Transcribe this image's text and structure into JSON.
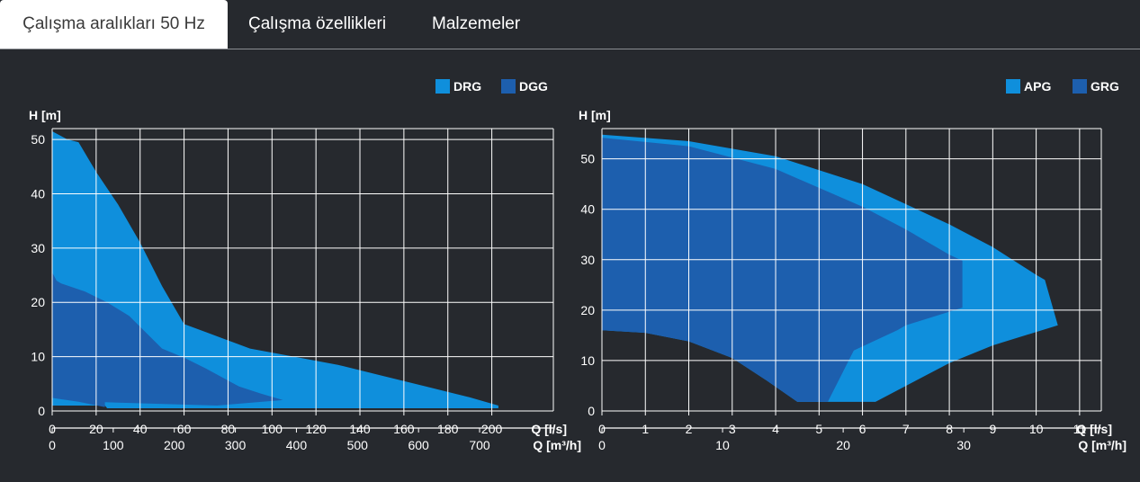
{
  "tabs": [
    {
      "label": "Çalışma aralıkları 50 Hz",
      "active": true
    },
    {
      "label": "Çalışma özellikleri",
      "active": false
    },
    {
      "label": "Malzemeler",
      "active": false
    }
  ],
  "colors": {
    "background": "#26292e",
    "grid": "#ffffff",
    "series_light": "#0f8fdc",
    "series_dark": "#1d5fae"
  },
  "chart_data": [
    {
      "type": "area",
      "ylabel": "H [m]",
      "xlabel": "Q [l/s]",
      "xlabel2": "Q [m³/h]",
      "xlim": [
        0,
        228
      ],
      "ylim": [
        0,
        52
      ],
      "xticks": [
        0,
        20,
        40,
        60,
        80,
        100,
        120,
        140,
        160,
        180,
        200
      ],
      "yticks": [
        0,
        10,
        20,
        30,
        40,
        50
      ],
      "xticks2": [
        0,
        100,
        200,
        300,
        400,
        500,
        600,
        700
      ],
      "legend_position": "top-right",
      "grid": true,
      "series": [
        {
          "name": "DRG",
          "color": "#0f8fdc",
          "points": [
            [
              0,
              51.5
            ],
            [
              7,
              50
            ],
            [
              12,
              49.5
            ],
            [
              20,
              44
            ],
            [
              30,
              38
            ],
            [
              40,
              31
            ],
            [
              50,
              23
            ],
            [
              60,
              16
            ],
            [
              70,
              14.5
            ],
            [
              90,
              11.5
            ],
            [
              110,
              10
            ],
            [
              130,
              8.5
            ],
            [
              150,
              6.5
            ],
            [
              170,
              4.5
            ],
            [
              190,
              2.5
            ],
            [
              203,
              1
            ],
            [
              203,
              0.5
            ],
            [
              25,
              0.5
            ],
            [
              24,
              1
            ],
            [
              0,
              1
            ]
          ]
        },
        {
          "name": "DGG",
          "color": "#1d5fae",
          "points": [
            [
              0,
              25.5
            ],
            [
              2,
              24
            ],
            [
              4,
              23.5
            ],
            [
              15,
              22
            ],
            [
              25,
              20
            ],
            [
              35,
              17.5
            ],
            [
              50,
              11.5
            ],
            [
              60,
              9.8
            ],
            [
              70,
              7.8
            ],
            [
              85,
              4.5
            ],
            [
              95,
              3.2
            ],
            [
              105,
              2
            ],
            [
              75,
              1
            ],
            [
              24,
              1.6
            ],
            [
              24,
              0.7
            ],
            [
              12,
              1.7
            ],
            [
              0,
              2.4
            ]
          ]
        }
      ]
    },
    {
      "type": "area",
      "ylabel": "H [m]",
      "xlabel": "Q [l/s]",
      "xlabel2": "Q [m³/h]",
      "xlim": [
        0,
        11.5
      ],
      "ylim": [
        0,
        56
      ],
      "xticks": [
        0,
        1,
        2,
        3,
        4,
        5,
        6,
        7,
        8,
        9,
        10,
        11
      ],
      "yticks": [
        0,
        10,
        20,
        30,
        40,
        50
      ],
      "xticks2": [
        0,
        10,
        20,
        30
      ],
      "legend_position": "top-right",
      "grid": true,
      "series": [
        {
          "name": "APG",
          "color": "#0f8fdc",
          "points": [
            [
              0,
              54.8
            ],
            [
              2,
              53.5
            ],
            [
              4,
              50.5
            ],
            [
              6,
              45
            ],
            [
              8,
              37
            ],
            [
              9,
              32.5
            ],
            [
              10,
              27
            ],
            [
              10.2,
              26
            ],
            [
              10.5,
              17
            ],
            [
              9,
              13
            ],
            [
              8,
              9.5
            ],
            [
              6.3,
              1.8
            ],
            [
              4.5,
              1.8
            ],
            [
              3.8,
              6
            ],
            [
              3,
              10.5
            ],
            [
              2,
              13.8
            ],
            [
              1,
              15.5
            ],
            [
              0,
              16
            ]
          ]
        },
        {
          "name": "GRG",
          "color": "#1d5fae",
          "points": [
            [
              0,
              54.2
            ],
            [
              2,
              52.5
            ],
            [
              4,
              48
            ],
            [
              6,
              40.5
            ],
            [
              7,
              36
            ],
            [
              8,
              31
            ],
            [
              8.3,
              29.8
            ],
            [
              8.3,
              20.5
            ],
            [
              7,
              17
            ],
            [
              6.8,
              16
            ],
            [
              5.8,
              12
            ],
            [
              5.2,
              1.8
            ],
            [
              4.5,
              1.8
            ],
            [
              3.8,
              6
            ],
            [
              3,
              10.5
            ],
            [
              2,
              13.8
            ],
            [
              1,
              15.5
            ],
            [
              0,
              16
            ]
          ]
        }
      ]
    }
  ]
}
